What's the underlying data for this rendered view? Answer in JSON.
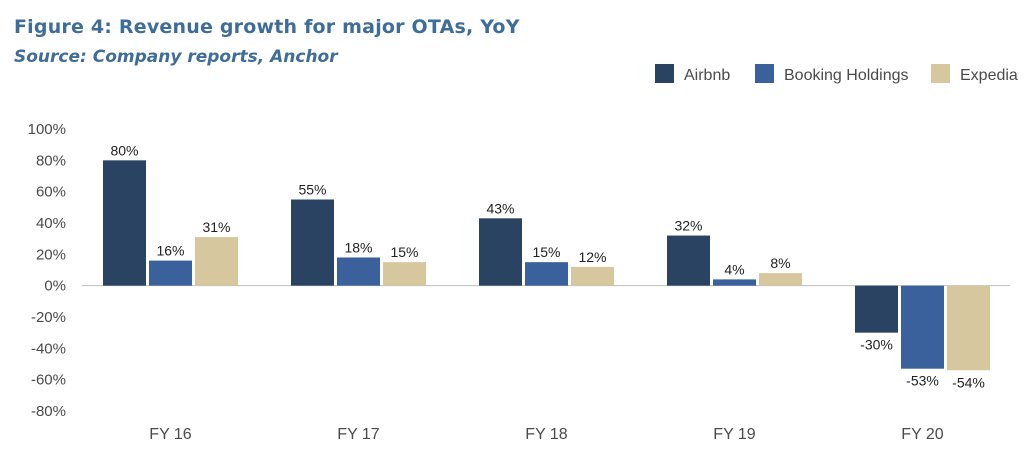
{
  "header": {
    "title": "Figure 4: Revenue growth for major OTAs, YoY",
    "subtitle": "Source: Company reports, Anchor"
  },
  "chart_data": {
    "type": "bar",
    "categories": [
      "FY 16",
      "FY 17",
      "FY 18",
      "FY 19",
      "FY 20"
    ],
    "series": [
      {
        "name": "Airbnb",
        "color": "#2a4363",
        "values": [
          80,
          55,
          43,
          32,
          -30
        ],
        "labels": [
          "80%",
          "55%",
          "43%",
          "32%",
          "-30%"
        ]
      },
      {
        "name": "Booking Holdings",
        "color": "#3a619b",
        "values": [
          16,
          18,
          15,
          4,
          -53
        ],
        "labels": [
          "16%",
          "18%",
          "15%",
          "4%",
          "-53%"
        ]
      },
      {
        "name": "Expedia",
        "color": "#d6c79e",
        "values": [
          31,
          15,
          12,
          8,
          -54
        ],
        "labels": [
          "31%",
          "15%",
          "12%",
          "8%",
          "-54%"
        ]
      }
    ],
    "ylim": [
      -80,
      100
    ],
    "yticks": [
      100,
      80,
      60,
      40,
      20,
      0,
      -20,
      -40,
      -60,
      -80
    ],
    "ytick_labels": [
      "100%",
      "80%",
      "60%",
      "40%",
      "20%",
      "0%",
      "-20%",
      "-40%",
      "-60%",
      "-80%"
    ],
    "grid": false,
    "legend_position": "top-right",
    "xlabel": "",
    "ylabel": ""
  }
}
